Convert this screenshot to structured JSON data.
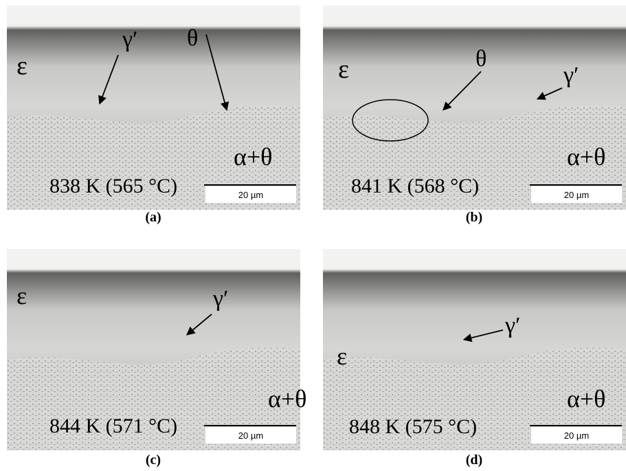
{
  "panels": [
    {
      "caption": "(a)",
      "phases": [
        "ε",
        "γ′",
        "θ",
        "α+θ"
      ],
      "temperature": "838 K (565 °C)",
      "scale_bar": "20 µm"
    },
    {
      "caption": "(b)",
      "phases": [
        "ε",
        "θ",
        "γ′",
        "α+θ"
      ],
      "temperature": "841 K (568 °C)",
      "scale_bar": "20 µm"
    },
    {
      "caption": "(c)",
      "phases": [
        "ε",
        "γ′",
        "α+θ"
      ],
      "temperature": "844 K (571 °C)",
      "scale_bar": "20 µm"
    },
    {
      "caption": "(d)",
      "phases": [
        "γ′",
        "ε",
        "α+θ"
      ],
      "temperature": "848 K (575 °C)",
      "scale_bar": "20 µm"
    }
  ]
}
